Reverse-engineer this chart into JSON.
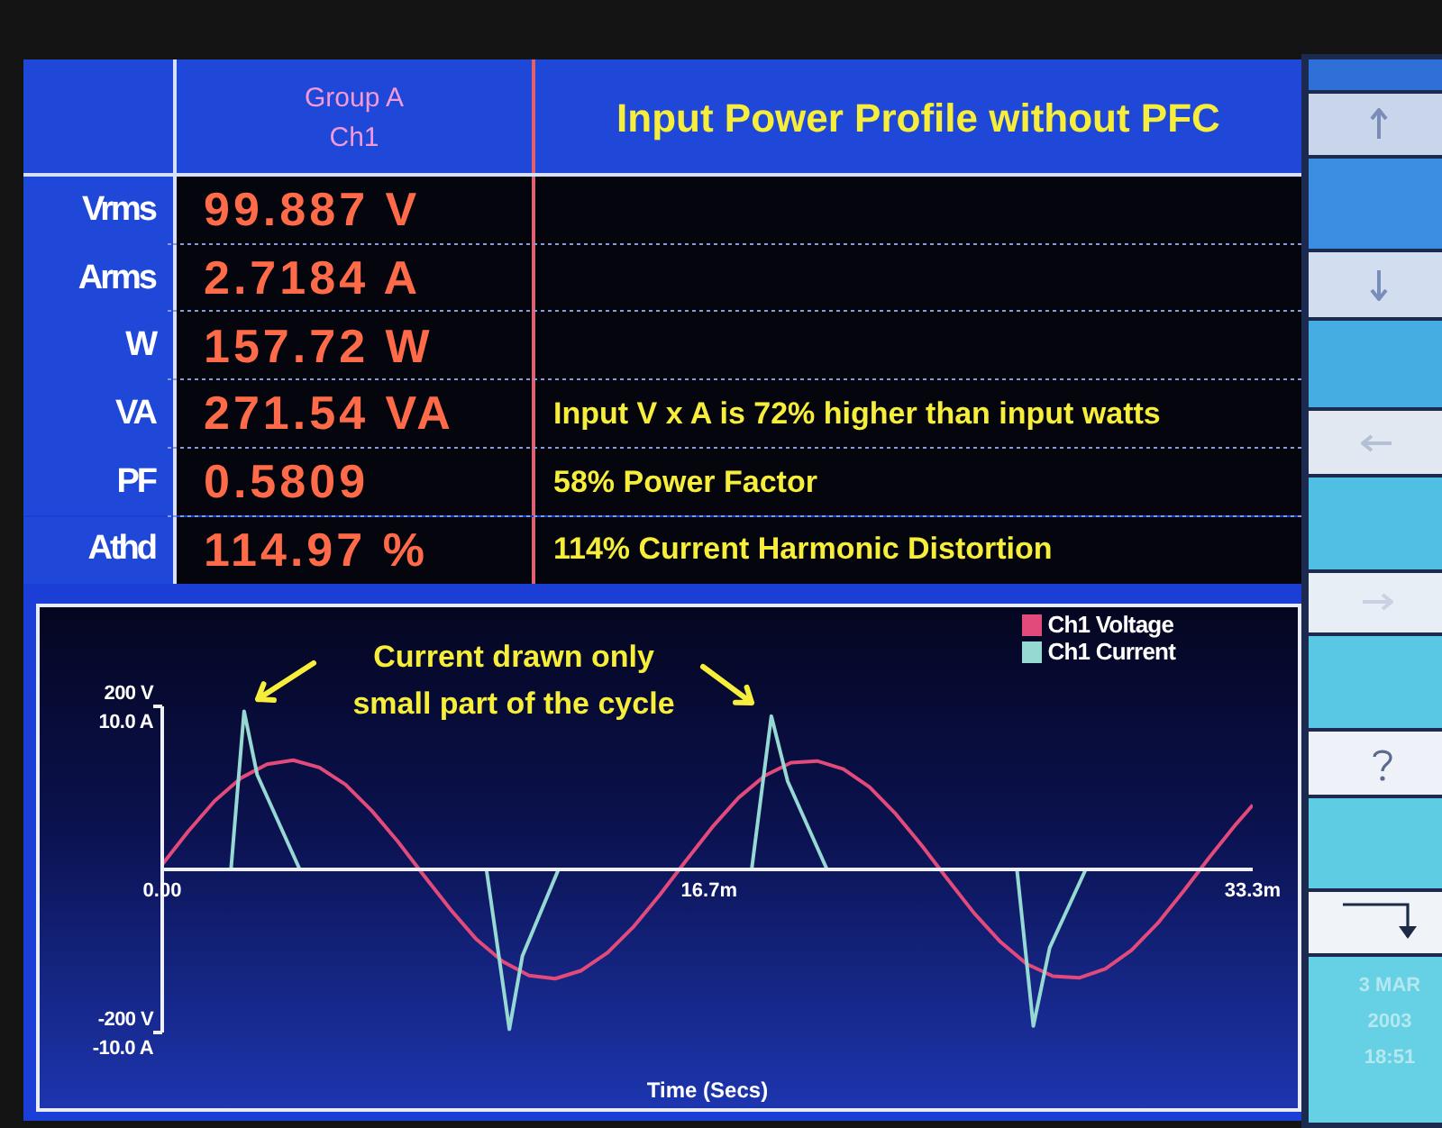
{
  "chart_data": [
    {
      "type": "other",
      "title": "Input Power Profile without PFC",
      "subtitle": "Group A Ch1",
      "categories": [
        "Vrms",
        "Arms",
        "W",
        "VA",
        "PF",
        "Athd"
      ],
      "value_labels": [
        "99.887 V",
        "2.7184 A",
        "157.72 W",
        "271.54 VA",
        "0.5809",
        "114.97 %"
      ],
      "annotations": [
        "Input V x A is 72% higher than input watts",
        "58% Power Factor",
        "114% Current Harmonic Distortion"
      ]
    },
    {
      "type": "line",
      "xlabel": "Time (Secs)",
      "legend": "top right",
      "marker": "none",
      "annotations": [
        "Current drawn only small part of the cycle",
        "3 MAR 2003 18:51"
      ],
      "xlim": [
        0,
        33.3
      ],
      "xticks": [
        {
          "value": 0,
          "label": "0.00"
        },
        {
          "value": 16.7,
          "label": "16.7m"
        },
        {
          "value": 33.3,
          "label": "33.3m"
        }
      ],
      "ylim": [
        -200,
        200
      ],
      "yticks": [
        {
          "value": 200,
          "label": "200 V"
        },
        {
          "value": -200,
          "label": "-200 V"
        }
      ],
      "y2lim": [
        -10,
        10
      ],
      "y2ticks": [
        {
          "value": 10,
          "label": "10.0 A"
        },
        {
          "value": -10,
          "label": "-10.0 A"
        }
      ],
      "series": [
        {
          "name": "Ch1 Voltage",
          "color": "#e24a7c",
          "x": [
            0,
            0.8,
            1.6,
            2.4,
            3.2,
            4,
            4.8,
            5.6,
            6.4,
            7.2,
            8,
            8.8,
            9.6,
            10.4,
            11.2,
            12,
            12.8,
            13.6,
            14.4,
            15.2,
            16,
            16.8,
            17.6,
            18.4,
            19.2,
            20,
            20.8,
            21.6,
            22.4,
            23.2,
            24,
            24.8,
            25.6,
            26.4,
            27.2,
            28,
            28.8,
            29.6,
            30.4,
            31.2,
            32,
            32.8,
            33.3
          ],
          "values": [
            6,
            47,
            84,
            112,
            129,
            134,
            125,
            104,
            72,
            34,
            -8,
            -49,
            -86,
            -113,
            -130,
            -134,
            -124,
            -102,
            -70,
            -31,
            11,
            52,
            88,
            115,
            131,
            133,
            123,
            101,
            68,
            29,
            -13,
            -54,
            -89,
            -116,
            -131,
            -133,
            -122,
            -99,
            -66,
            -26,
            16,
            56,
            79
          ]
        },
        {
          "name": "Ch1 Current",
          "color": "#96d8d2",
          "axis": "y2",
          "x": [
            0,
            2.1,
            2.5,
            2.9,
            4.2,
            9.9,
            10.6,
            11,
            12.1,
            18,
            18.6,
            19.1,
            20.3,
            26.1,
            26.6,
            27.1,
            28.2,
            33.3
          ],
          "values": [
            0,
            0,
            9.7,
            5.8,
            0,
            0,
            -9.8,
            -5.3,
            0,
            0,
            9.4,
            5.4,
            0,
            0,
            -9.6,
            -4.8,
            0,
            0
          ]
        }
      ]
    }
  ]
}
